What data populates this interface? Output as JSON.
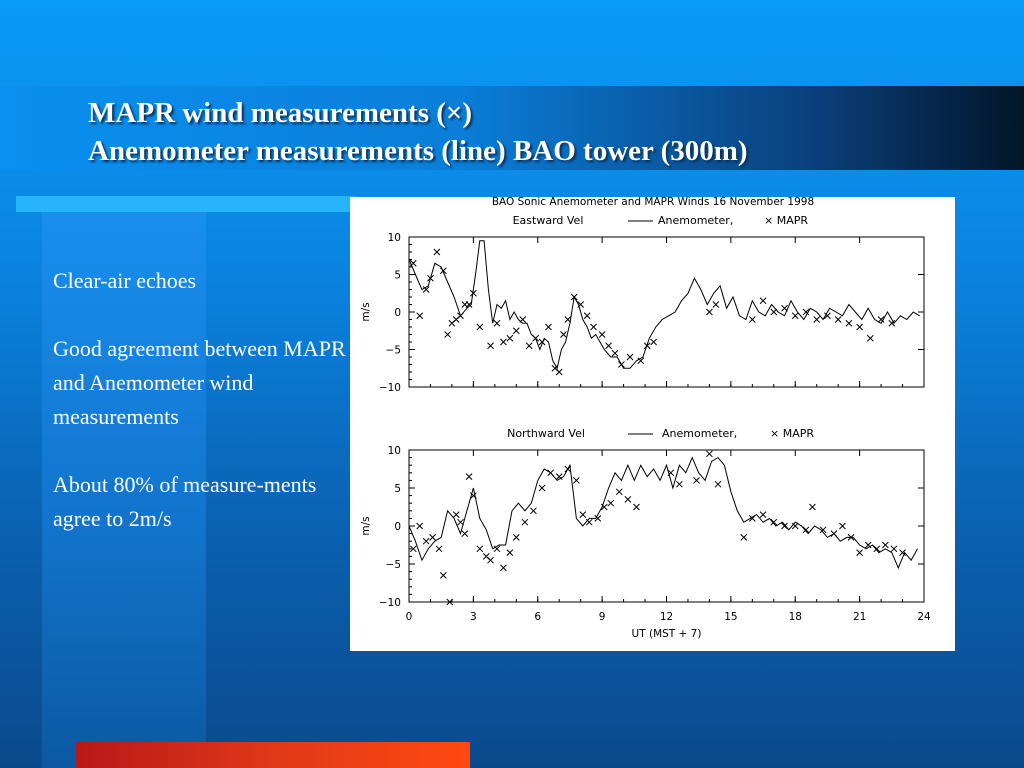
{
  "slide": {
    "title_line1": "MAPR wind measurements (×)",
    "title_line2": "Anemometer measurements (line) BAO tower (300m)",
    "bullets": [
      "Clear-air echoes",
      "Good agreement between MAPR and Anemometer wind measurements",
      "About 80% of measure-ments agree to 2m/s"
    ]
  },
  "chart_data": [
    {
      "type": "line",
      "title": "BAO Sonic Anemometer and MAPR Winds  16 November 1998",
      "subtitle": "Eastward Vel",
      "legend": [
        "Anemometer,",
        "× MAPR"
      ],
      "ylabel": "m/s",
      "xlabel": "",
      "xlim": [
        0,
        24
      ],
      "ylim": [
        -10,
        10
      ],
      "xticks": [
        0,
        3,
        6,
        9,
        12,
        15,
        18,
        21,
        24
      ],
      "yticks": [
        -10,
        -5,
        0,
        5,
        10
      ],
      "show_x_tick_labels": false,
      "series": [
        {
          "name": "Anemometer",
          "style": "line",
          "x": [
            0,
            0.3,
            0.6,
            0.9,
            1.2,
            1.5,
            1.8,
            2.1,
            2.4,
            2.7,
            2.9,
            3.1,
            3.3,
            3.5,
            3.7,
            3.9,
            4.1,
            4.3,
            4.5,
            4.7,
            4.9,
            5.1,
            5.3,
            5.5,
            5.7,
            5.9,
            6.1,
            6.3,
            6.5,
            6.7,
            6.9,
            7.1,
            7.3,
            7.5,
            7.7,
            7.9,
            8.1,
            8.3,
            8.5,
            8.7,
            8.9,
            9.1,
            9.4,
            9.7,
            10,
            10.3,
            10.6,
            10.9,
            11.2,
            11.5,
            11.8,
            12.1,
            12.4,
            12.7,
            13,
            13.3,
            13.6,
            13.9,
            14.2,
            14.5,
            14.8,
            15.1,
            15.4,
            15.7,
            16,
            16.3,
            16.6,
            16.9,
            17.2,
            17.5,
            17.8,
            18.1,
            18.4,
            18.7,
            19,
            19.3,
            19.6,
            19.9,
            20.2,
            20.5,
            20.8,
            21.1,
            21.4,
            21.7,
            22,
            22.3,
            22.6,
            22.9,
            23.2,
            23.5,
            23.8
          ],
          "y": [
            7,
            5,
            3,
            3.5,
            6.5,
            6,
            4,
            2,
            -0.5,
            0.5,
            1,
            5,
            9.5,
            9.5,
            3,
            -1.5,
            1,
            0.5,
            1.5,
            -1,
            0,
            -1,
            -1.5,
            -1.5,
            -3,
            -3.5,
            -5,
            -3.5,
            -4,
            -6.5,
            -7.5,
            -5,
            -4,
            -1.5,
            2,
            1,
            -1,
            -2,
            -3.5,
            -3,
            -4,
            -5,
            -6,
            -6,
            -7.5,
            -7.5,
            -6.5,
            -6,
            -3.5,
            -2,
            -1,
            -0.5,
            0,
            1.5,
            2.5,
            4.5,
            3,
            1,
            2.5,
            3.5,
            0.5,
            2,
            -0.5,
            -1,
            1.5,
            0,
            -0.5,
            1,
            0,
            -0.5,
            1.5,
            0,
            -1,
            0.5,
            0,
            -1,
            0.5,
            0,
            -0.5,
            1,
            0,
            -1,
            0.5,
            -1,
            -1.5,
            0,
            -1.5,
            -0.5,
            -1,
            0,
            -0.5
          ]
        },
        {
          "name": "MAPR",
          "style": "x",
          "x": [
            0.2,
            0.5,
            0.8,
            1.0,
            1.3,
            1.6,
            1.8,
            2.0,
            2.2,
            2.4,
            2.6,
            2.8,
            3.0,
            3.3,
            3.8,
            4.1,
            4.4,
            4.7,
            5.0,
            5.3,
            5.6,
            5.9,
            6.2,
            6.5,
            6.8,
            7.0,
            7.2,
            7.4,
            7.7,
            8.0,
            8.3,
            8.6,
            9.0,
            9.3,
            9.6,
            9.9,
            10.3,
            10.8,
            11.1,
            11.4,
            14.0,
            14.3,
            16.0,
            16.5,
            17.0,
            17.5,
            18.0,
            18.5,
            19.0,
            19.5,
            20.0,
            20.5,
            21.0,
            21.5,
            22.0,
            22.5
          ],
          "y": [
            6.5,
            -0.5,
            3,
            4.5,
            8,
            5.5,
            -3,
            -1.5,
            -1,
            -0.5,
            1,
            1,
            2.5,
            -2,
            -4.5,
            -1.5,
            -4,
            -3.5,
            -2.5,
            -1,
            -4.5,
            -3.5,
            -4,
            -2,
            -7.5,
            -8,
            -3,
            -1,
            2,
            1,
            -0.5,
            -2,
            -3,
            -4.5,
            -5.5,
            -7,
            -6,
            -6.5,
            -4.5,
            -4,
            0,
            1,
            -1,
            1.5,
            0,
            0.5,
            -0.5,
            0,
            -1,
            -0.5,
            -1,
            -1.5,
            -2,
            -3.5,
            -1,
            -1.5
          ]
        }
      ]
    },
    {
      "type": "line",
      "title": "",
      "subtitle": "Northward Vel",
      "legend": [
        "Anemometer,",
        "× MAPR"
      ],
      "ylabel": "m/s",
      "xlabel": "UT (MST + 7)",
      "xlim": [
        0,
        24
      ],
      "ylim": [
        -10,
        10
      ],
      "xticks": [
        0,
        3,
        6,
        9,
        12,
        15,
        18,
        21,
        24
      ],
      "yticks": [
        -10,
        -5,
        0,
        5,
        10
      ],
      "show_x_tick_labels": true,
      "series": [
        {
          "name": "Anemometer",
          "style": "line",
          "x": [
            0,
            0.3,
            0.6,
            0.9,
            1.2,
            1.5,
            1.8,
            2.1,
            2.4,
            2.7,
            3.0,
            3.3,
            3.6,
            3.9,
            4.2,
            4.5,
            4.8,
            5.1,
            5.4,
            5.7,
            6.0,
            6.3,
            6.6,
            6.9,
            7.2,
            7.5,
            7.8,
            8.1,
            8.4,
            8.7,
            9.0,
            9.3,
            9.6,
            9.9,
            10.2,
            10.5,
            10.8,
            11.1,
            11.4,
            11.7,
            12.0,
            12.3,
            12.6,
            12.9,
            13.2,
            13.5,
            13.8,
            14.1,
            14.4,
            14.7,
            15.0,
            15.3,
            15.6,
            15.9,
            16.2,
            16.5,
            16.8,
            17.1,
            17.4,
            17.7,
            18.0,
            18.3,
            18.6,
            18.9,
            19.2,
            19.5,
            19.8,
            20.1,
            20.4,
            20.7,
            21.0,
            21.3,
            21.6,
            21.9,
            22.2,
            22.5,
            22.8,
            23.1,
            23.4,
            23.7
          ],
          "y": [
            0,
            -2,
            -4.5,
            -3,
            -2,
            -1.5,
            2,
            1,
            -1,
            2,
            5,
            1,
            -0.5,
            -3,
            -2.5,
            -2.5,
            2,
            3,
            2,
            3,
            6,
            7.5,
            7,
            6,
            6.5,
            8,
            1,
            0,
            1,
            1,
            2.5,
            5,
            7,
            6,
            8,
            6,
            8,
            6.5,
            7.5,
            6,
            8,
            5,
            8,
            7,
            9,
            7,
            6,
            8.5,
            9,
            8,
            4.5,
            2,
            0.5,
            1,
            1.5,
            0.5,
            1,
            0,
            0.5,
            -0.5,
            0.5,
            0,
            -1,
            0,
            -0.5,
            -1.5,
            -1,
            -2,
            -1.5,
            -1.5,
            -2.5,
            -3,
            -2.5,
            -3.5,
            -3,
            -3.5,
            -5.5,
            -3.5,
            -4.5,
            -3
          ]
        },
        {
          "name": "MAPR",
          "style": "x",
          "x": [
            0.2,
            0.5,
            0.8,
            1.1,
            1.4,
            1.6,
            1.9,
            2.2,
            2.4,
            2.6,
            2.8,
            3.0,
            3.3,
            3.6,
            3.8,
            4.1,
            4.4,
            4.7,
            5.0,
            5.4,
            5.8,
            6.2,
            6.6,
            7.0,
            7.4,
            7.8,
            8.1,
            8.4,
            8.8,
            9.1,
            9.4,
            9.8,
            10.2,
            10.6,
            12.2,
            12.6,
            13.4,
            14.0,
            14.4,
            15.6,
            16.0,
            16.5,
            17.0,
            17.5,
            18.0,
            18.5,
            18.8,
            19.3,
            19.8,
            20.2,
            20.6,
            21.0,
            21.4,
            21.8,
            22.2,
            22.6,
            23.0
          ],
          "y": [
            -3,
            0,
            -2,
            -1.5,
            -3,
            -6.5,
            -10,
            1.5,
            0.5,
            -1,
            6.5,
            4,
            -3,
            -4,
            -4.5,
            -3,
            -5.5,
            -3.5,
            -1.5,
            0.5,
            2,
            5,
            7,
            6.5,
            7.5,
            6,
            1.5,
            0.5,
            1,
            2.5,
            3,
            4.5,
            3.5,
            2.5,
            7,
            5.5,
            6,
            9.5,
            5.5,
            -1.5,
            1,
            1.5,
            0.5,
            0,
            0,
            -0.5,
            2.5,
            -0.5,
            -1,
            0,
            -1.5,
            -3.5,
            -2.5,
            -3,
            -2.5,
            -3,
            -3.5
          ]
        }
      ]
    }
  ]
}
